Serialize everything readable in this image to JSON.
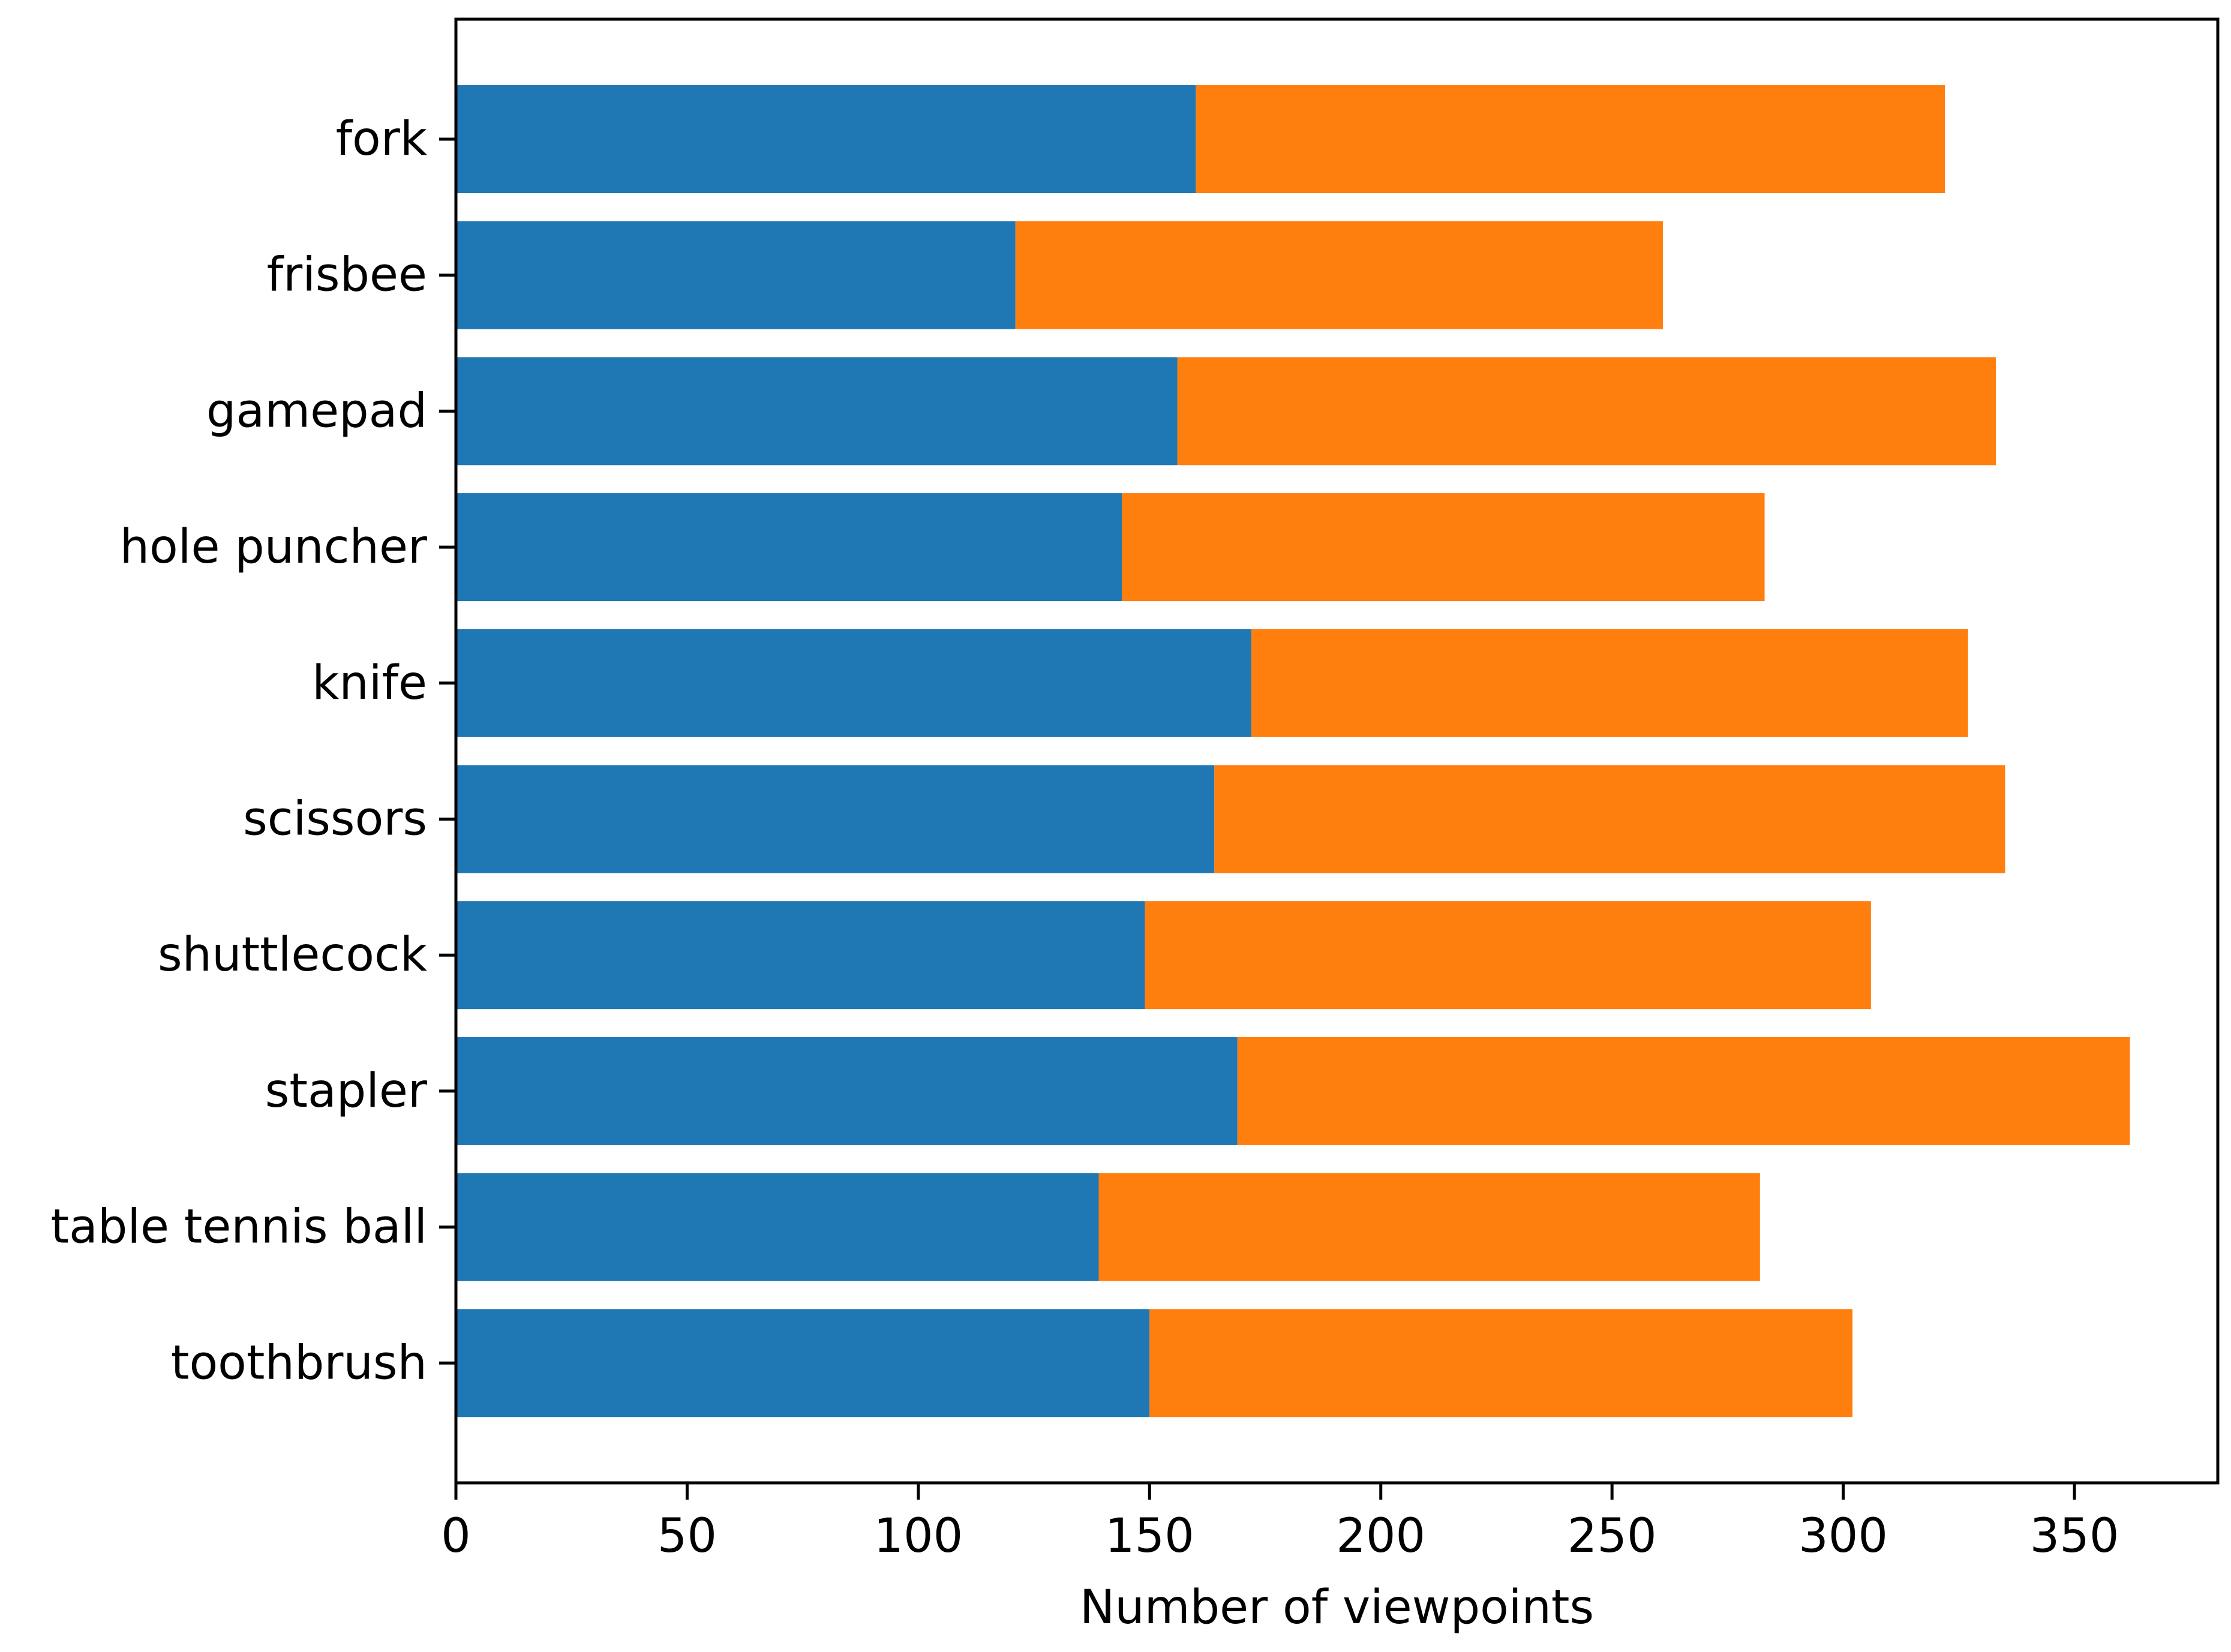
{
  "chart_data": {
    "type": "bar",
    "orientation": "horizontal",
    "stacked": true,
    "categories": [
      "fork",
      "frisbee",
      "gamepad",
      "hole puncher",
      "knife",
      "scissors",
      "shuttlecock",
      "stapler",
      "table tennis ball",
      "toothbrush"
    ],
    "series": [
      {
        "color": "#1f77b4",
        "values": [
          160,
          121,
          156,
          144,
          172,
          164,
          149,
          169,
          139,
          150
        ]
      },
      {
        "color": "#ff7f0e",
        "values": [
          162,
          140,
          177,
          139,
          155,
          171,
          157,
          193,
          143,
          152
        ]
      }
    ],
    "title": "",
    "xlabel": "Number of viewpoints",
    "ylabel": "",
    "xlim": [
      0,
      381
    ],
    "xticks": [
      "0",
      "50",
      "100",
      "150",
      "200",
      "250",
      "300",
      "350"
    ],
    "grid": false,
    "legend": "none"
  }
}
